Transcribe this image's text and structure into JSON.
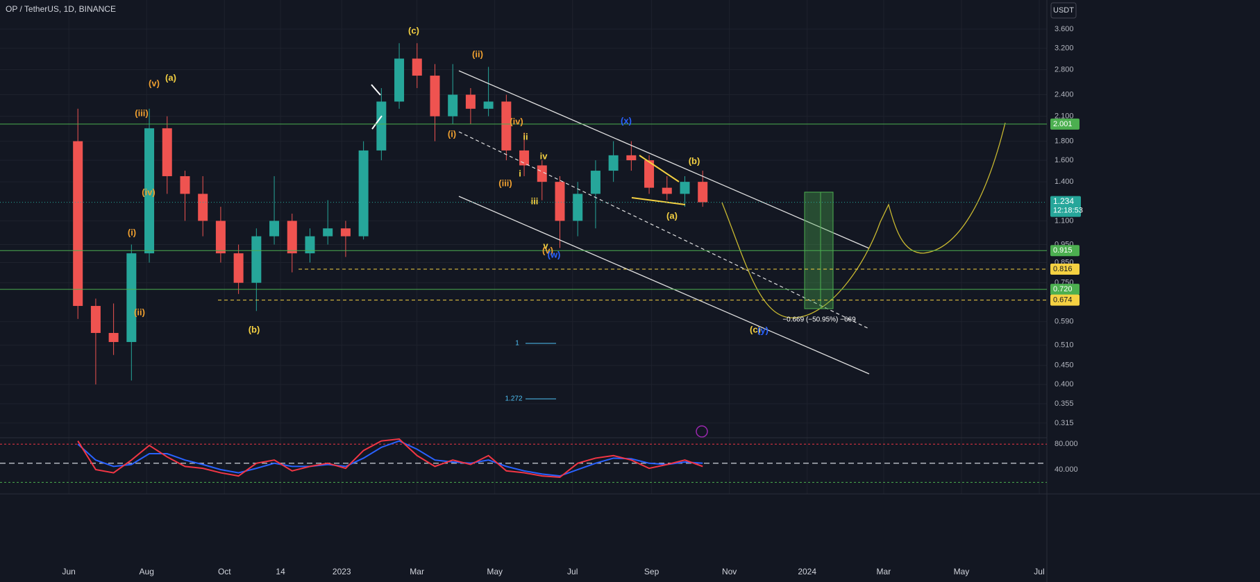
{
  "chart_data": [
    {
      "type": "candlestick",
      "title": "OP / TetherUS, 1D, BINANCE",
      "currency": "USDT",
      "log": true,
      "grid": true,
      "x": [
        "2022-06-01",
        "2022-06-15",
        "2022-06-29",
        "2022-07-13",
        "2022-07-27",
        "2022-08-10",
        "2022-08-24",
        "2022-09-07",
        "2022-09-21",
        "2022-10-05",
        "2022-10-19",
        "2022-11-02",
        "2022-11-16",
        "2022-11-30",
        "2022-12-14",
        "2022-12-28",
        "2023-01-11",
        "2023-01-25",
        "2023-02-08",
        "2023-02-22",
        "2023-03-08",
        "2023-03-22",
        "2023-04-05",
        "2023-04-19",
        "2023-05-03",
        "2023-05-17",
        "2023-05-31",
        "2023-06-14",
        "2023-06-28",
        "2023-07-12",
        "2023-07-26",
        "2023-08-09",
        "2023-08-23",
        "2023-09-06",
        "2023-09-20",
        "2023-10-04"
      ],
      "open": [
        1.8,
        0.65,
        0.55,
        0.52,
        0.9,
        1.95,
        1.45,
        1.3,
        1.1,
        0.9,
        0.75,
        1.0,
        1.1,
        0.9,
        1.0,
        1.05,
        1.0,
        1.7,
        2.3,
        3.0,
        2.7,
        2.1,
        2.4,
        2.2,
        2.3,
        1.7,
        1.55,
        1.4,
        1.1,
        1.3,
        1.5,
        1.65,
        1.6,
        1.35,
        1.3,
        1.4
      ],
      "high": [
        2.2,
        0.68,
        0.66,
        0.95,
        2.2,
        2.1,
        1.5,
        1.45,
        1.2,
        0.95,
        1.05,
        1.45,
        1.15,
        1.05,
        1.25,
        1.1,
        1.8,
        2.5,
        3.3,
        3.3,
        2.9,
        2.9,
        2.5,
        2.85,
        2.4,
        1.9,
        1.6,
        1.45,
        1.4,
        1.6,
        1.8,
        1.8,
        1.65,
        1.45,
        1.45,
        1.5
      ],
      "low": [
        0.6,
        0.4,
        0.48,
        0.41,
        0.85,
        1.3,
        1.1,
        1.0,
        0.85,
        0.7,
        0.63,
        0.95,
        0.8,
        0.85,
        0.95,
        0.88,
        0.98,
        1.6,
        2.2,
        2.5,
        1.8,
        2.0,
        2.0,
        2.1,
        1.6,
        1.45,
        1.25,
        0.93,
        1.0,
        1.05,
        1.4,
        1.5,
        1.3,
        1.25,
        1.2,
        1.2
      ],
      "close": [
        0.65,
        0.55,
        0.52,
        0.9,
        1.95,
        1.45,
        1.3,
        1.1,
        0.9,
        0.75,
        1.0,
        1.1,
        0.9,
        1.0,
        1.05,
        1.0,
        1.7,
        2.3,
        3.0,
        2.7,
        2.1,
        2.4,
        2.2,
        2.3,
        1.7,
        1.55,
        1.4,
        1.1,
        1.3,
        1.5,
        1.65,
        1.6,
        1.35,
        1.3,
        1.4,
        1.234
      ],
      "up_color": "#26a69a",
      "down_color": "#ef5350",
      "xlim": [
        "2022-04-08",
        "2024-07-07"
      ],
      "xticks": [
        {
          "value": "2022-06-01",
          "label": "Jun"
        },
        {
          "value": "2022-08-01",
          "label": "Aug"
        },
        {
          "value": "2022-10-01",
          "label": "Oct"
        },
        {
          "value": "2022-11-14",
          "label": "14"
        },
        {
          "value": "2023-01-01",
          "label": "2023"
        },
        {
          "value": "2023-03-01",
          "label": "Mar"
        },
        {
          "value": "2023-05-01",
          "label": "May"
        },
        {
          "value": "2023-07-01",
          "label": "Jul"
        },
        {
          "value": "2023-09-01",
          "label": "Sep"
        },
        {
          "value": "2023-11-01",
          "label": "Nov"
        },
        {
          "value": "2024-01-01",
          "label": "2024"
        },
        {
          "value": "2024-03-01",
          "label": "Mar"
        },
        {
          "value": "2024-05-01",
          "label": "May"
        },
        {
          "value": "2024-07-01",
          "label": "Jul"
        }
      ],
      "ylim": [
        0.289,
        4.31
      ],
      "yticks": [
        {
          "value": 3.6,
          "label": "3.600"
        },
        {
          "value": 3.2,
          "label": "3.200"
        },
        {
          "value": 2.8,
          "label": "2.800"
        },
        {
          "value": 2.4,
          "label": "2.400"
        },
        {
          "value": 2.1,
          "label": "2.100"
        },
        {
          "value": 1.8,
          "label": "1.800"
        },
        {
          "value": 1.6,
          "label": "1.600"
        },
        {
          "value": 1.4,
          "label": "1.400"
        },
        {
          "value": 1.1,
          "label": "1.100"
        },
        {
          "value": 0.95,
          "label": "0.950"
        },
        {
          "value": 0.85,
          "label": "0.850"
        },
        {
          "value": 0.75,
          "label": "0.750"
        },
        {
          "value": 0.59,
          "label": "0.590"
        },
        {
          "value": 0.51,
          "label": "0.510"
        },
        {
          "value": 0.45,
          "label": "0.450"
        },
        {
          "value": 0.4,
          "label": "0.400"
        },
        {
          "value": 0.355,
          "label": "0.355"
        },
        {
          "value": 0.315,
          "label": "0.315"
        }
      ],
      "levels": [
        {
          "value": 2.001,
          "label": "2.001",
          "color": "#4caf50",
          "style": "solid"
        },
        {
          "value": 0.915,
          "label": "0.915",
          "color": "#4caf50",
          "style": "solid"
        },
        {
          "value": 0.816,
          "label": "0.816",
          "color": "#f5d142",
          "style": "dashed"
        },
        {
          "value": 0.72,
          "label": "0.720",
          "color": "#4caf50",
          "style": "solid"
        },
        {
          "value": 0.674,
          "label": "0.674",
          "color": "#f5d142",
          "style": "dashed"
        }
      ],
      "last": {
        "value": 1.234,
        "label": "1.234",
        "countdown": "12:18:53",
        "color": "#26a69a"
      },
      "annotations": [
        {
          "text": "(c)",
          "color": "#f5d142"
        },
        {
          "text": "(a)",
          "color": "#f5d142"
        },
        {
          "text": "(v)",
          "color": "#f0a030"
        },
        {
          "text": "(iii)",
          "color": "#f0a030"
        },
        {
          "text": "(iv)",
          "color": "#f0a030"
        },
        {
          "text": "(i)",
          "color": "#f0a030"
        },
        {
          "text": "(ii)",
          "color": "#f0a030"
        },
        {
          "text": "(b)",
          "color": "#f5d142"
        },
        {
          "text": "(ii)",
          "color": "#f0a030"
        },
        {
          "text": "(iv)",
          "color": "#f0a030"
        },
        {
          "text": "ii",
          "color": "#f5d142"
        },
        {
          "text": "iv",
          "color": "#f5d142"
        },
        {
          "text": "i",
          "color": "#f5d142"
        },
        {
          "text": "(i)",
          "color": "#f0a030"
        },
        {
          "text": "(iii)",
          "color": "#f0a030"
        },
        {
          "text": "iii",
          "color": "#f5d142"
        },
        {
          "text": "v",
          "color": "#f5d142"
        },
        {
          "text": "(v)",
          "color": "#f0a030"
        },
        {
          "text": "(w)",
          "color": "#2962ff"
        },
        {
          "text": "(x)",
          "color": "#2962ff"
        },
        {
          "text": "(b)",
          "color": "#f5d142"
        },
        {
          "text": "(a)",
          "color": "#f5d142"
        },
        {
          "text": "(c)",
          "color": "#f5d142"
        },
        {
          "text": "(y)",
          "color": "#2962ff"
        },
        {
          "text": "1",
          "color": "#4fc3f7"
        },
        {
          "text": "1.272",
          "color": "#4fc3f7"
        },
        {
          "text": "−0.669 (−50.95%) −669",
          "color": "#ffffff"
        }
      ]
    },
    {
      "type": "line",
      "grid": false,
      "x": [
        "2022-06-01",
        "2022-06-15",
        "2022-06-29",
        "2022-07-13",
        "2022-07-27",
        "2022-08-10",
        "2022-08-24",
        "2022-09-07",
        "2022-09-21",
        "2022-10-05",
        "2022-10-19",
        "2022-11-02",
        "2022-11-16",
        "2022-11-30",
        "2022-12-14",
        "2022-12-28",
        "2023-01-11",
        "2023-01-25",
        "2023-02-08",
        "2023-02-22",
        "2023-03-08",
        "2023-03-22",
        "2023-04-05",
        "2023-04-19",
        "2023-05-03",
        "2023-05-17",
        "2023-05-31",
        "2023-06-14",
        "2023-06-28",
        "2023-07-12",
        "2023-07-26",
        "2023-08-09",
        "2023-08-23",
        "2023-09-06",
        "2023-09-20",
        "2023-10-04"
      ],
      "ylim": [
        4,
        89
      ],
      "yticks": [
        {
          "value": 80,
          "label": "80.000"
        },
        {
          "value": 40,
          "label": "40.000"
        }
      ],
      "bands": [
        {
          "value": 80,
          "color": "#f23645"
        },
        {
          "value": 50,
          "color": "#b2b5be"
        },
        {
          "value": 20,
          "color": "#4caf50"
        }
      ],
      "series": [
        {
          "color": "#2962ff",
          "values": [
            80,
            55,
            45,
            48,
            65,
            65,
            55,
            48,
            40,
            35,
            42,
            50,
            45,
            45,
            48,
            45,
            58,
            75,
            85,
            72,
            55,
            52,
            50,
            55,
            45,
            38,
            33,
            30,
            40,
            50,
            58,
            57,
            50,
            48,
            52,
            50
          ]
        },
        {
          "color": "#f23645",
          "values": [
            85,
            40,
            35,
            55,
            78,
            60,
            45,
            42,
            35,
            30,
            50,
            55,
            38,
            45,
            50,
            42,
            70,
            85,
            88,
            62,
            45,
            55,
            48,
            62,
            38,
            35,
            30,
            28,
            50,
            58,
            62,
            55,
            42,
            48,
            55,
            45
          ]
        }
      ]
    }
  ]
}
